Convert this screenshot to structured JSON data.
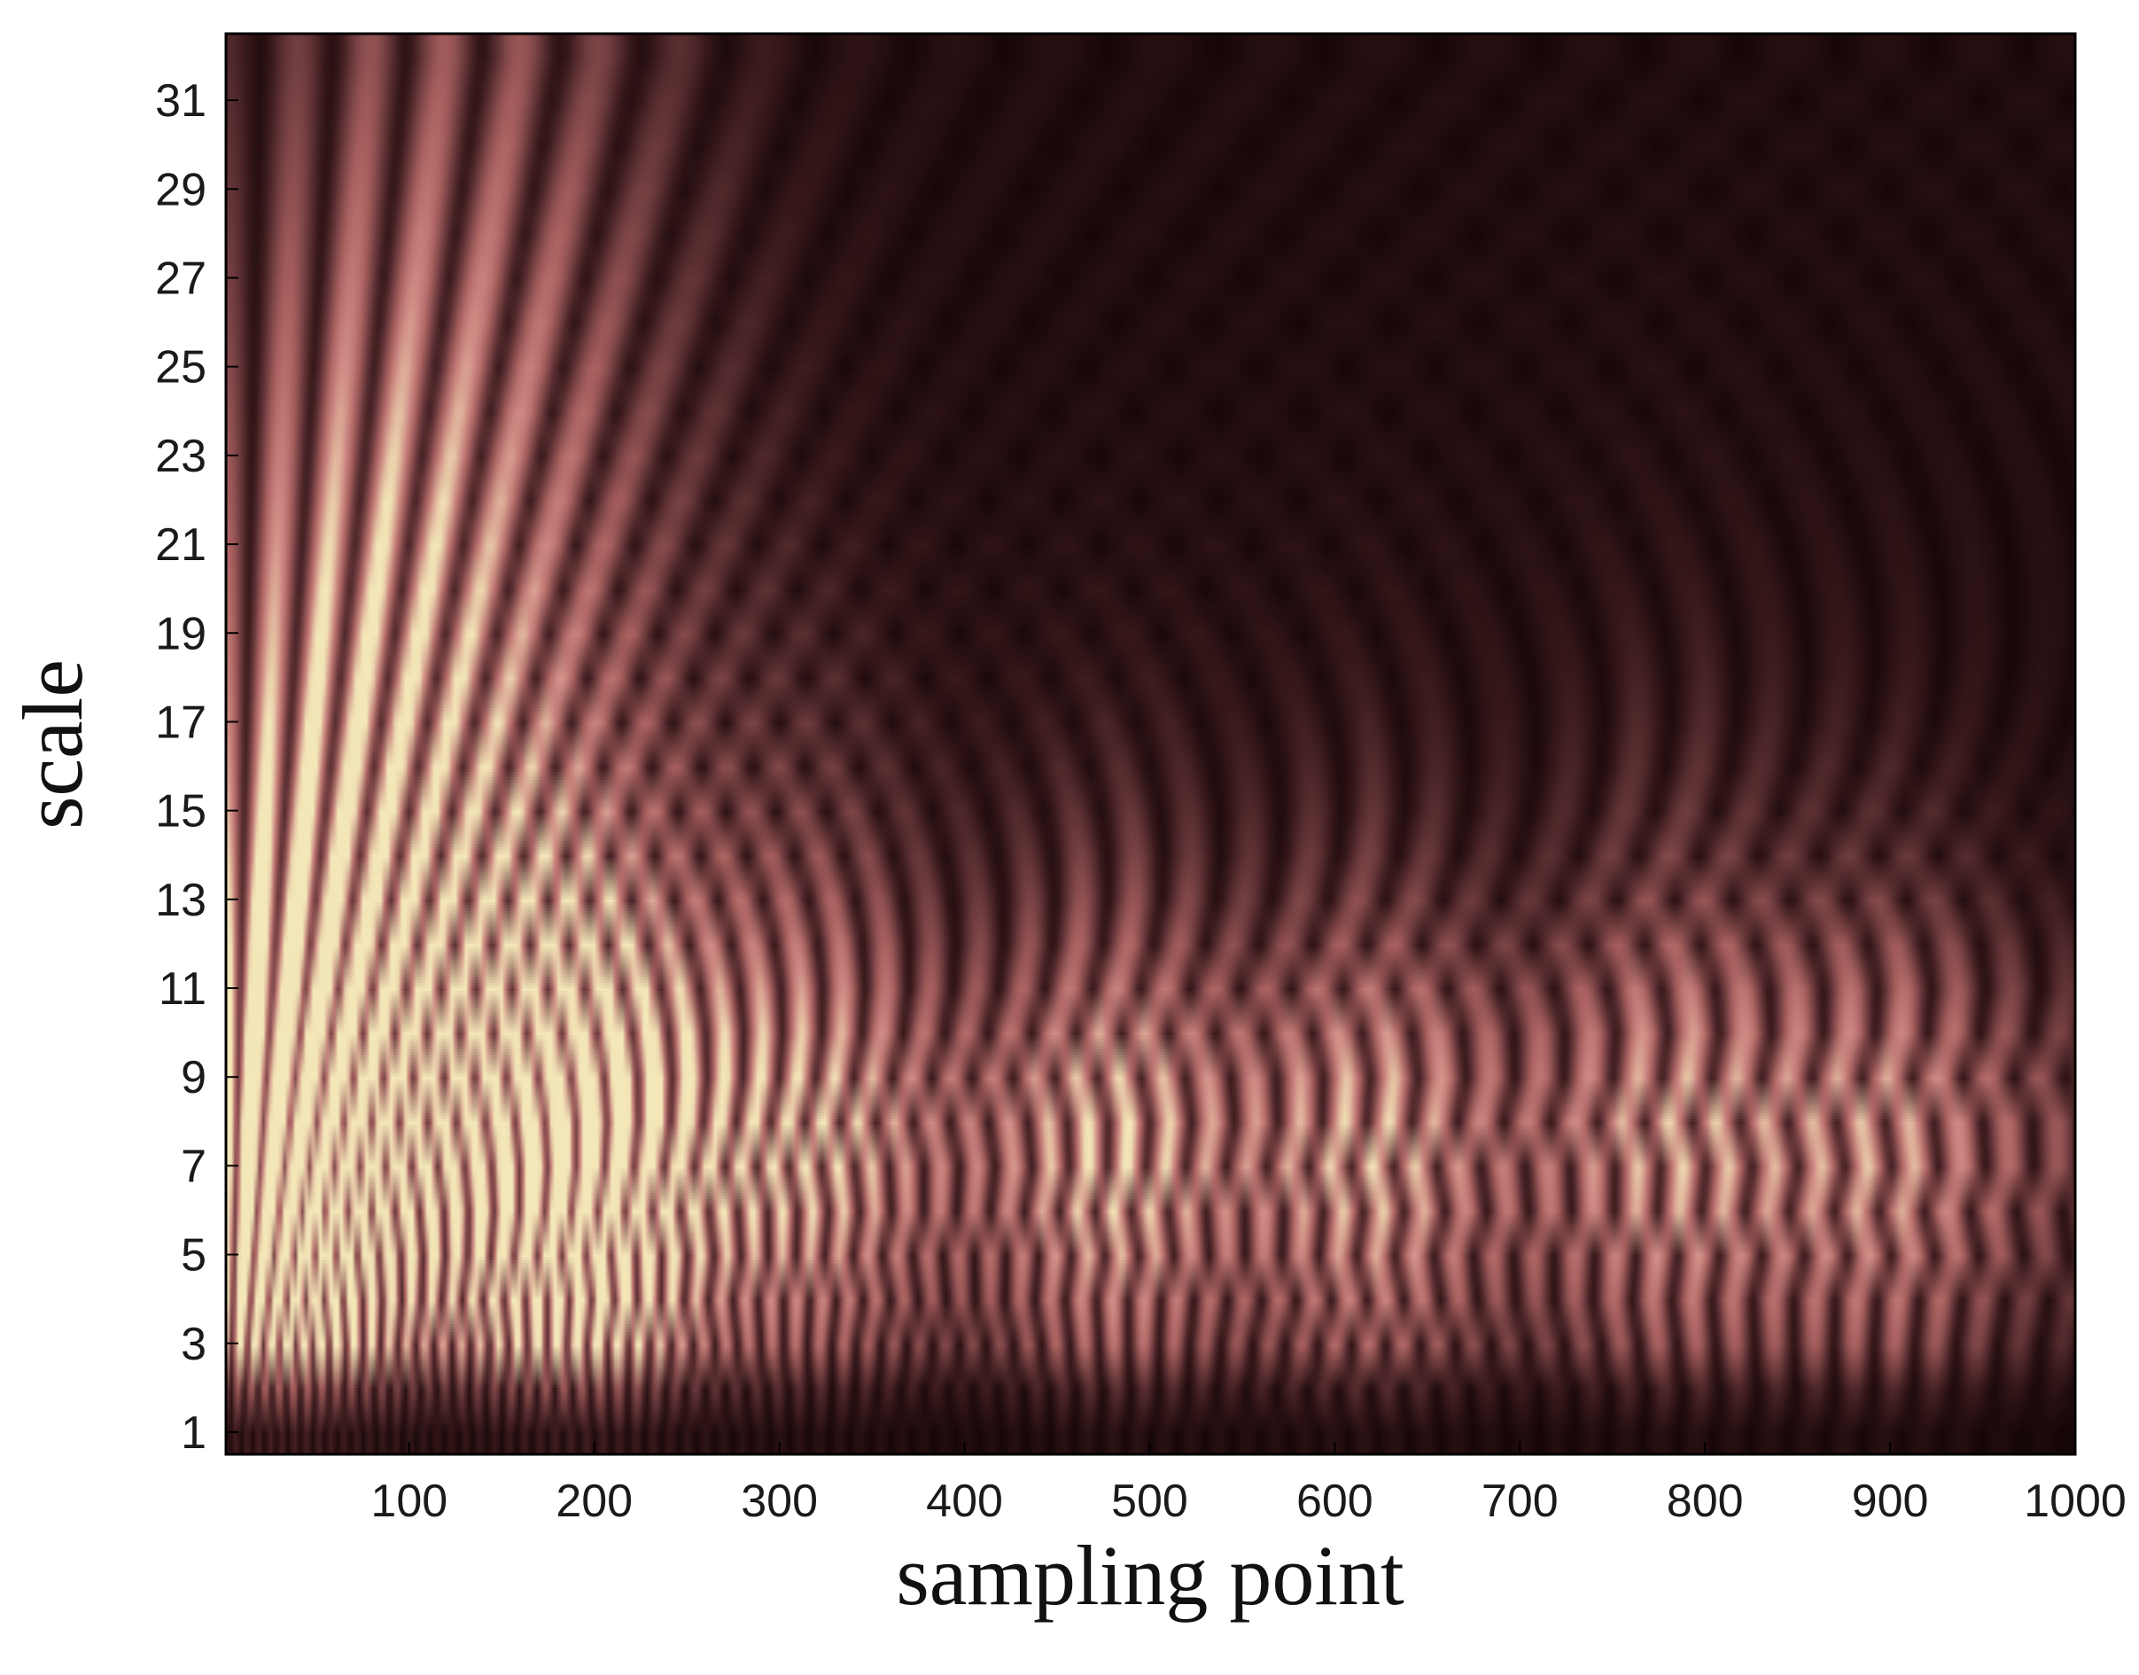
{
  "chart_data": {
    "type": "heatmap",
    "title": "",
    "xlabel": "sampling point",
    "ylabel": "scale",
    "xlim": [
      1,
      1000
    ],
    "ylim": [
      0.5,
      32.5
    ],
    "xticks": [
      100,
      200,
      300,
      400,
      500,
      600,
      700,
      800,
      900,
      1000
    ],
    "xtick_labels": [
      "100",
      "200",
      "300",
      "400",
      "500",
      "600",
      "700",
      "800",
      "900",
      "1000"
    ],
    "yticks": [
      1,
      3,
      5,
      7,
      9,
      11,
      13,
      15,
      17,
      19,
      21,
      23,
      25,
      27,
      29,
      31
    ],
    "ytick_labels": [
      "1",
      "3",
      "5",
      "7",
      "9",
      "11",
      "13",
      "15",
      "17",
      "19",
      "21",
      "23",
      "25",
      "27",
      "29",
      "31"
    ],
    "scales": 32,
    "colormap": [
      "#120406",
      "#3a1a1c",
      "#6e3c3f",
      "#a9605f",
      "#cf8a84",
      "#f3e6b8"
    ],
    "grid": false,
    "legend": "none",
    "bright_regions": [
      {
        "sampling_point": 25,
        "scale": 6,
        "intensity": 0.95
      },
      {
        "sampling_point": 60,
        "scale": 14,
        "intensity": 0.75
      },
      {
        "sampling_point": 140,
        "scale": 22,
        "intensity": 0.7
      },
      {
        "sampling_point": 195,
        "scale": 6,
        "intensity": 1.0
      },
      {
        "sampling_point": 320,
        "scale": 8,
        "intensity": 0.6
      },
      {
        "sampling_point": 480,
        "scale": 7,
        "intensity": 0.65
      },
      {
        "sampling_point": 620,
        "scale": 7,
        "intensity": 0.6
      },
      {
        "sampling_point": 780,
        "scale": 8,
        "intensity": 0.55
      },
      {
        "sampling_point": 900,
        "scale": 7,
        "intensity": 0.5
      }
    ]
  }
}
